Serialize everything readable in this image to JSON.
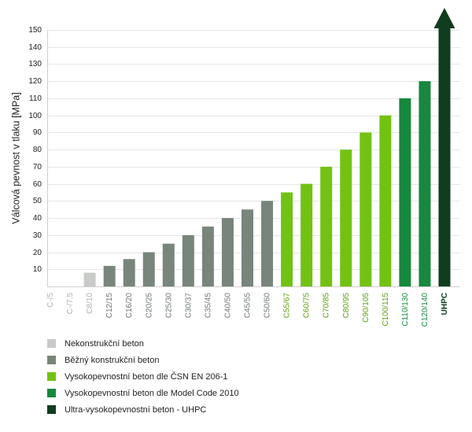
{
  "chart_data": {
    "type": "bar",
    "ylabel": "Válcová pevnost v tlaku [MPa]",
    "ylim": [
      0,
      150
    ],
    "yticks": [
      10,
      20,
      30,
      40,
      50,
      60,
      70,
      80,
      90,
      100,
      110,
      120,
      130,
      140,
      150
    ],
    "grid": true,
    "bars": [
      {
        "category": "C-/5",
        "value": 0,
        "group": "nekonstrukcni"
      },
      {
        "category": "C-/7,5",
        "value": 0,
        "group": "nekonstrukcni"
      },
      {
        "category": "C8/10",
        "value": 8,
        "group": "nekonstrukcni"
      },
      {
        "category": "C12/15",
        "value": 12,
        "group": "bezny"
      },
      {
        "category": "C16/20",
        "value": 16,
        "group": "bezny"
      },
      {
        "category": "C20/25",
        "value": 20,
        "group": "bezny"
      },
      {
        "category": "C25/30",
        "value": 25,
        "group": "bezny"
      },
      {
        "category": "C30/37",
        "value": 30,
        "group": "bezny"
      },
      {
        "category": "C35/45",
        "value": 35,
        "group": "bezny"
      },
      {
        "category": "C40/50",
        "value": 40,
        "group": "bezny"
      },
      {
        "category": "C45/55",
        "value": 45,
        "group": "bezny"
      },
      {
        "category": "C50/60",
        "value": 50,
        "group": "bezny"
      },
      {
        "category": "C55/67",
        "value": 55,
        "group": "vpb_csn"
      },
      {
        "category": "C60/75",
        "value": 60,
        "group": "vpb_csn"
      },
      {
        "category": "C70/85",
        "value": 70,
        "group": "vpb_csn"
      },
      {
        "category": "C80/95",
        "value": 80,
        "group": "vpb_csn"
      },
      {
        "category": "C90/105",
        "value": 90,
        "group": "vpb_csn"
      },
      {
        "category": "C100/115",
        "value": 100,
        "group": "vpb_csn"
      },
      {
        "category": "C110/130",
        "value": 110,
        "group": "vpb_mc"
      },
      {
        "category": "C120/140",
        "value": 120,
        "group": "vpb_mc"
      },
      {
        "category": "UHPC",
        "value": 150,
        "group": "uhpc",
        "arrow": true
      }
    ],
    "groups": {
      "nekonstrukcni": {
        "bar_color": "#c8cbc8",
        "label_color": "#b0b4b0"
      },
      "bezny": {
        "bar_color": "#78857b",
        "label_color": "#6d7870"
      },
      "vpb_csn": {
        "bar_color": "#72c214",
        "label_color": "#5fa010"
      },
      "vpb_mc": {
        "bar_color": "#17883c",
        "label_color": "#17883c"
      },
      "uhpc": {
        "bar_color": "#0f3d1e",
        "label_color": "#0f3d1e"
      }
    },
    "legend": [
      {
        "label": "Nekonstrukční beton",
        "color": "#c8cbc8"
      },
      {
        "label": "Běžný konstrukční beton",
        "color": "#78857b"
      },
      {
        "label": "Vysokopevnostní beton dle ČSN EN 206-1",
        "color": "#72c214"
      },
      {
        "label": "Vysokopevnostní beton dle Model Code 2010",
        "color": "#17883c"
      },
      {
        "label": "Ultra-vysokopevnostní beton - UHPC",
        "color": "#0f3d1e"
      }
    ]
  }
}
